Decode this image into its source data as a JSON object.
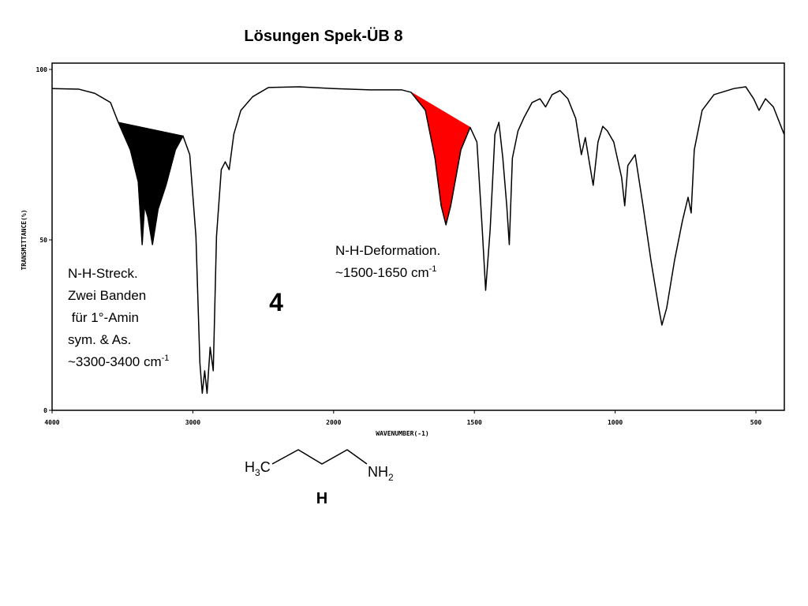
{
  "chart_data": {
    "type": "line",
    "title": "Lösungen Spek-ÜB 8",
    "x_label": "WAVENUMBER(-1)",
    "y_label": "TRANSMITTANCE(%)",
    "xlim": [
      4000,
      400
    ],
    "xticks": [
      4000,
      3000,
      2000,
      1500,
      1000,
      500
    ],
    "ylim": [
      0,
      100
    ],
    "yticks": [
      0,
      50,
      100
    ],
    "color": "#000000",
    "x": [
      4000,
      3809,
      3697,
      3585,
      3530,
      3444,
      3388,
      3360,
      3343,
      3320,
      3287,
      3247,
      3191,
      3124,
      3070,
      3022,
      2978,
      2950,
      2933,
      2916,
      2899,
      2877,
      2855,
      2832,
      2798,
      2770,
      2742,
      2709,
      2659,
      2575,
      2463,
      2240,
      2000,
      1871,
      1758,
      1725,
      1674,
      1640,
      1618,
      1601,
      1584,
      1548,
      1515,
      1491,
      1472,
      1460,
      1444,
      1427,
      1413,
      1399,
      1385,
      1376,
      1365,
      1345,
      1323,
      1295,
      1267,
      1247,
      1224,
      1196,
      1168,
      1140,
      1120,
      1106,
      1092,
      1078,
      1061,
      1044,
      1028,
      1005,
      977,
      966,
      955,
      929,
      901,
      873,
      845,
      834,
      817,
      789,
      761,
      741,
      730,
      719,
      691,
      649,
      578,
      536,
      508,
      489,
      466,
      438,
      400
    ],
    "values": [
      94.4,
      94.2,
      93,
      90.3,
      84.5,
      76.4,
      67,
      48.6,
      60,
      56.7,
      48.6,
      59,
      66,
      76.4,
      80.5,
      75,
      51,
      13.9,
      5,
      11.6,
      5,
      18.5,
      11.6,
      51,
      70.6,
      72.9,
      70.6,
      81,
      88,
      92,
      94.7,
      94.9,
      94.4,
      94,
      94,
      93.3,
      88,
      74,
      60,
      54.4,
      60,
      76.4,
      83,
      78.7,
      53,
      35.2,
      53,
      81,
      84.5,
      74,
      60,
      48.6,
      74,
      82,
      86,
      90.3,
      91.4,
      89,
      92.6,
      93.8,
      91.4,
      85.6,
      75,
      80,
      72.9,
      66,
      78.7,
      83.3,
      82,
      78.7,
      68.3,
      60,
      71.8,
      75,
      60,
      44,
      30,
      25,
      30,
      44,
      55.6,
      62.5,
      57.9,
      76.4,
      88,
      92.6,
      94.4,
      94.9,
      91.4,
      88,
      91.4,
      89,
      81
    ],
    "highlights": [
      {
        "from": 3530,
        "to": 3070,
        "color": "#000000"
      },
      {
        "from": 1725,
        "to": 1515,
        "color": "#ff0000"
      }
    ],
    "annotations": [
      {
        "lines": [
          "N-H-Streck.",
          "Zwei Banden",
          " für 1°-Amin",
          "sym. & As.",
          {
            "text": "~3300-3400 cm",
            "sup": "-1"
          }
        ]
      },
      {
        "lines": [
          "N-H-Deformation.",
          {
            "text": "~1500-1650 cm",
            "sup": "-1"
          }
        ]
      }
    ],
    "number_label": "4",
    "molecule": {
      "left": [
        "H",
        "3",
        "C"
      ],
      "right": [
        "NH",
        "2"
      ],
      "label": "H"
    }
  }
}
